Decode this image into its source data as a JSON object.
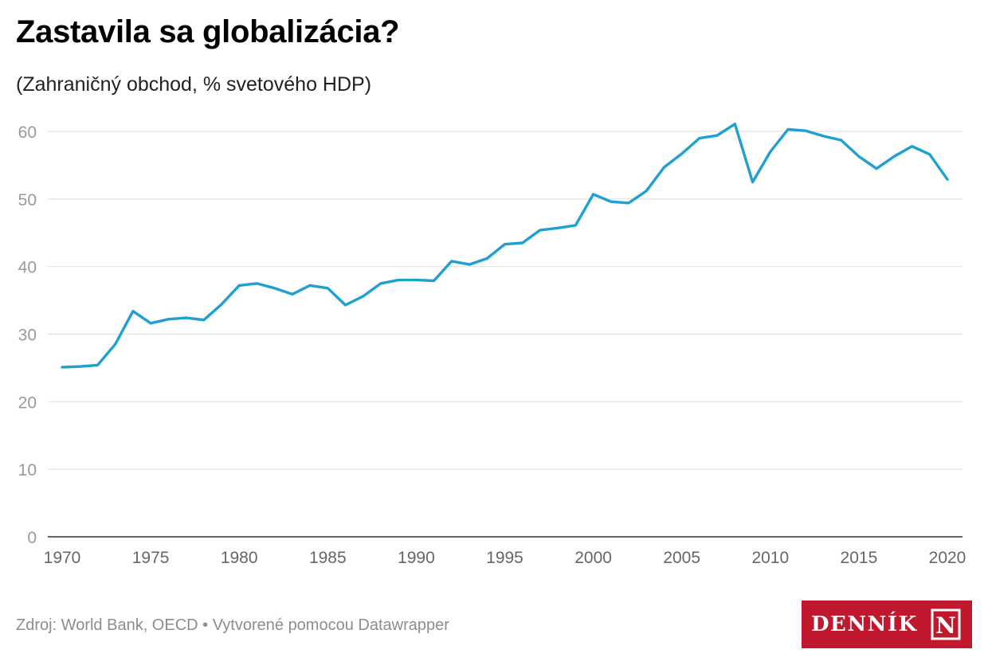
{
  "header": {
    "title": "Zastavila sa globalizácia?",
    "subtitle": "(Zahraničný obchod, % svetového HDP)"
  },
  "footer": {
    "source": "Zdroj: World Bank, OECD • Vytvorené pomocou Datawrapper",
    "logo_text": "DENNÍK",
    "logo_mark": "N"
  },
  "colors": {
    "line": "#1fa0cf",
    "grid": "#e2e2e2",
    "axis": "#333333",
    "tick_label": "#9a9a9a",
    "logo_bg": "#c0182c"
  },
  "chart_data": {
    "type": "line",
    "title": "Zastavila sa globalizácia?",
    "subtitle": "(Zahraničný obchod, % svetového HDP)",
    "xlabel": "",
    "ylabel": "",
    "xlim": [
      1970,
      2020
    ],
    "ylim": [
      0,
      60
    ],
    "x_ticks": [
      1970,
      1975,
      1980,
      1985,
      1990,
      1995,
      2000,
      2005,
      2010,
      2015,
      2020
    ],
    "y_ticks": [
      0,
      10,
      20,
      30,
      40,
      50,
      60
    ],
    "grid": true,
    "legend": "none",
    "series": [
      {
        "x": [
          1970,
          1971,
          1972,
          1973,
          1974,
          1975,
          1976,
          1977,
          1978,
          1979,
          1980,
          1981,
          1982,
          1983,
          1984,
          1985,
          1986,
          1987,
          1988,
          1989,
          1990,
          1991,
          1992,
          1993,
          1994,
          1995,
          1996,
          1997,
          1998,
          1999,
          2000,
          2001,
          2002,
          2003,
          2004,
          2005,
          2006,
          2007,
          2008,
          2009,
          2010,
          2011,
          2012,
          2013,
          2014,
          2015,
          2016,
          2017,
          2018,
          2019,
          2020
        ],
        "values": [
          25.1,
          25.2,
          25.4,
          28.5,
          33.4,
          31.6,
          32.2,
          32.4,
          32.1,
          34.4,
          37.2,
          37.5,
          36.8,
          35.9,
          37.2,
          36.8,
          34.3,
          35.6,
          37.5,
          38.0,
          38.0,
          37.9,
          40.8,
          40.3,
          41.2,
          43.3,
          43.5,
          45.4,
          45.7,
          46.1,
          50.7,
          49.6,
          49.4,
          51.2,
          54.7,
          56.7,
          59.0,
          59.4,
          61.1,
          52.5,
          57.0,
          60.3,
          60.1,
          59.3,
          58.7,
          56.3,
          54.5,
          56.3,
          57.8,
          56.6,
          52.9
        ]
      }
    ]
  }
}
